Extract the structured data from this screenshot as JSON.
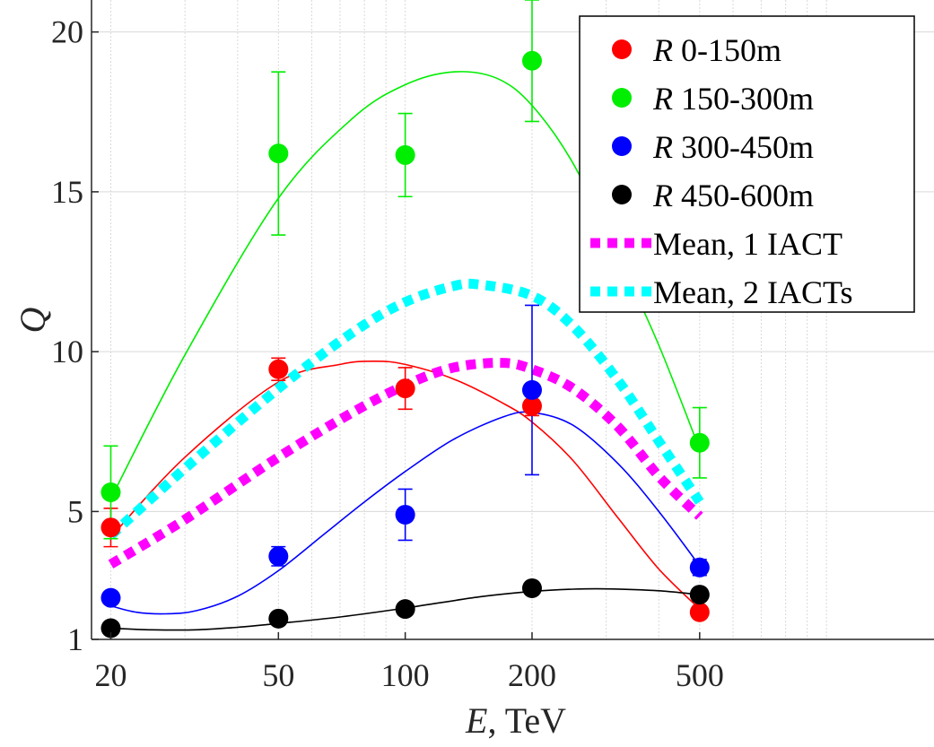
{
  "chart_data": {
    "type": "scatter",
    "xscale": "log",
    "xlim": [
      18,
      1800
    ],
    "ylim": [
      1,
      21
    ],
    "xticks": [
      20,
      50,
      100,
      200,
      500
    ],
    "xtick_labels": [
      "20",
      "50",
      "100",
      "200",
      "500"
    ],
    "yticks": [
      1,
      5,
      10,
      15,
      20
    ],
    "ytick_labels": [
      "1",
      "5",
      "10",
      "15",
      "20"
    ],
    "xlabel": {
      "var": "E",
      "rest": ", TeV"
    },
    "ylabel": "Q",
    "grid": true,
    "legend_position": "top-right",
    "series": [
      {
        "name": "R 0-150m",
        "var": "R",
        "range": " 0-150m",
        "color": "#ff0000",
        "x": [
          20,
          50,
          100,
          200,
          500
        ],
        "y": [
          4.5,
          9.45,
          8.85,
          8.3,
          1.85
        ],
        "err": [
          0.6,
          0.35,
          0.65,
          0.3,
          0.0
        ],
        "fit_x": [
          20,
          30,
          50,
          70,
          85,
          100,
          130,
          170,
          200,
          250,
          320,
          400,
          500
        ],
        "fit_y": [
          4.2,
          6.7,
          9.05,
          9.6,
          9.7,
          9.6,
          9.15,
          8.4,
          7.8,
          6.6,
          4.8,
          3.2,
          1.95
        ]
      },
      {
        "name": "R 150-300m",
        "var": "R",
        "range": " 150-300m",
        "color": "#00ee00",
        "x": [
          20,
          50,
          100,
          200,
          500
        ],
        "y": [
          5.6,
          16.2,
          16.15,
          19.1,
          7.15
        ],
        "err": [
          1.45,
          2.55,
          1.3,
          1.9,
          1.1
        ],
        "fit_x": [
          20,
          30,
          50,
          75,
          100,
          130,
          165,
          200,
          250,
          320,
          400,
          500
        ],
        "fit_y": [
          5.4,
          9.9,
          14.8,
          17.3,
          18.35,
          18.75,
          18.55,
          17.7,
          15.9,
          13.0,
          10.2,
          6.95
        ]
      },
      {
        "name": "R 300-450m",
        "var": "R",
        "range": " 300-450m",
        "color": "#0000ff",
        "x": [
          20,
          50,
          100,
          200,
          500
        ],
        "y": [
          2.3,
          3.6,
          4.9,
          8.8,
          3.25
        ],
        "err": [
          0.0,
          0.3,
          0.8,
          2.65,
          0.25
        ],
        "fit_x": [
          20,
          23,
          27,
          32,
          40,
          50,
          65,
          80,
          100,
          130,
          170,
          200,
          250,
          320,
          400,
          500
        ],
        "fit_y": [
          2.05,
          1.85,
          1.8,
          1.9,
          2.35,
          3.15,
          4.35,
          5.3,
          6.25,
          7.25,
          7.95,
          8.1,
          7.7,
          6.5,
          5.0,
          3.3
        ]
      },
      {
        "name": "R 450-600m",
        "var": "R",
        "range": " 450-600m",
        "color": "#000000",
        "x": [
          20,
          50,
          100,
          200,
          500
        ],
        "y": [
          1.35,
          1.65,
          1.95,
          2.6,
          2.4
        ],
        "err": [
          0,
          0,
          0,
          0,
          0
        ],
        "fit_x": [
          20,
          25,
          32,
          40,
          50,
          70,
          100,
          150,
          200,
          250,
          300,
          400,
          500
        ],
        "fit_y": [
          1.35,
          1.3,
          1.3,
          1.38,
          1.5,
          1.7,
          1.98,
          2.33,
          2.5,
          2.57,
          2.58,
          2.52,
          2.4
        ]
      },
      {
        "name": "Mean, 1 IACT",
        "color": "#ff00ff",
        "style": "dotted",
        "fit_x": [
          20,
          30,
          50,
          75,
          100,
          130,
          170,
          200,
          250,
          320,
          400,
          500
        ],
        "fit_y": [
          3.35,
          4.75,
          6.7,
          8.1,
          8.95,
          9.5,
          9.65,
          9.45,
          8.85,
          7.65,
          6.1,
          4.85
        ]
      },
      {
        "name": "Mean, 2 IACTs",
        "color": "#00ffff",
        "style": "dotted",
        "fit_x": [
          20,
          30,
          50,
          75,
          100,
          130,
          150,
          200,
          250,
          320,
          400,
          500
        ],
        "fit_y": [
          4.25,
          6.35,
          8.85,
          10.6,
          11.55,
          12.05,
          12.1,
          11.75,
          10.8,
          9.1,
          7.2,
          5.3
        ]
      }
    ],
    "legend": [
      {
        "var": "R",
        "rest": " 0-150m",
        "color": "#ff0000",
        "marker": "dot"
      },
      {
        "var": "R",
        "rest": " 150-300m",
        "color": "#00ee00",
        "marker": "dot"
      },
      {
        "var": "R",
        "rest": " 300-450m",
        "color": "#0000ff",
        "marker": "dot"
      },
      {
        "var": "R",
        "rest": " 450-600m",
        "color": "#000000",
        "marker": "dot"
      },
      {
        "var": "",
        "rest": "Mean, 1 IACT",
        "color": "#ff00ff",
        "marker": "dash"
      },
      {
        "var": "",
        "rest": "Mean, 2 IACTs",
        "color": "#00ffff",
        "marker": "dash"
      }
    ]
  }
}
